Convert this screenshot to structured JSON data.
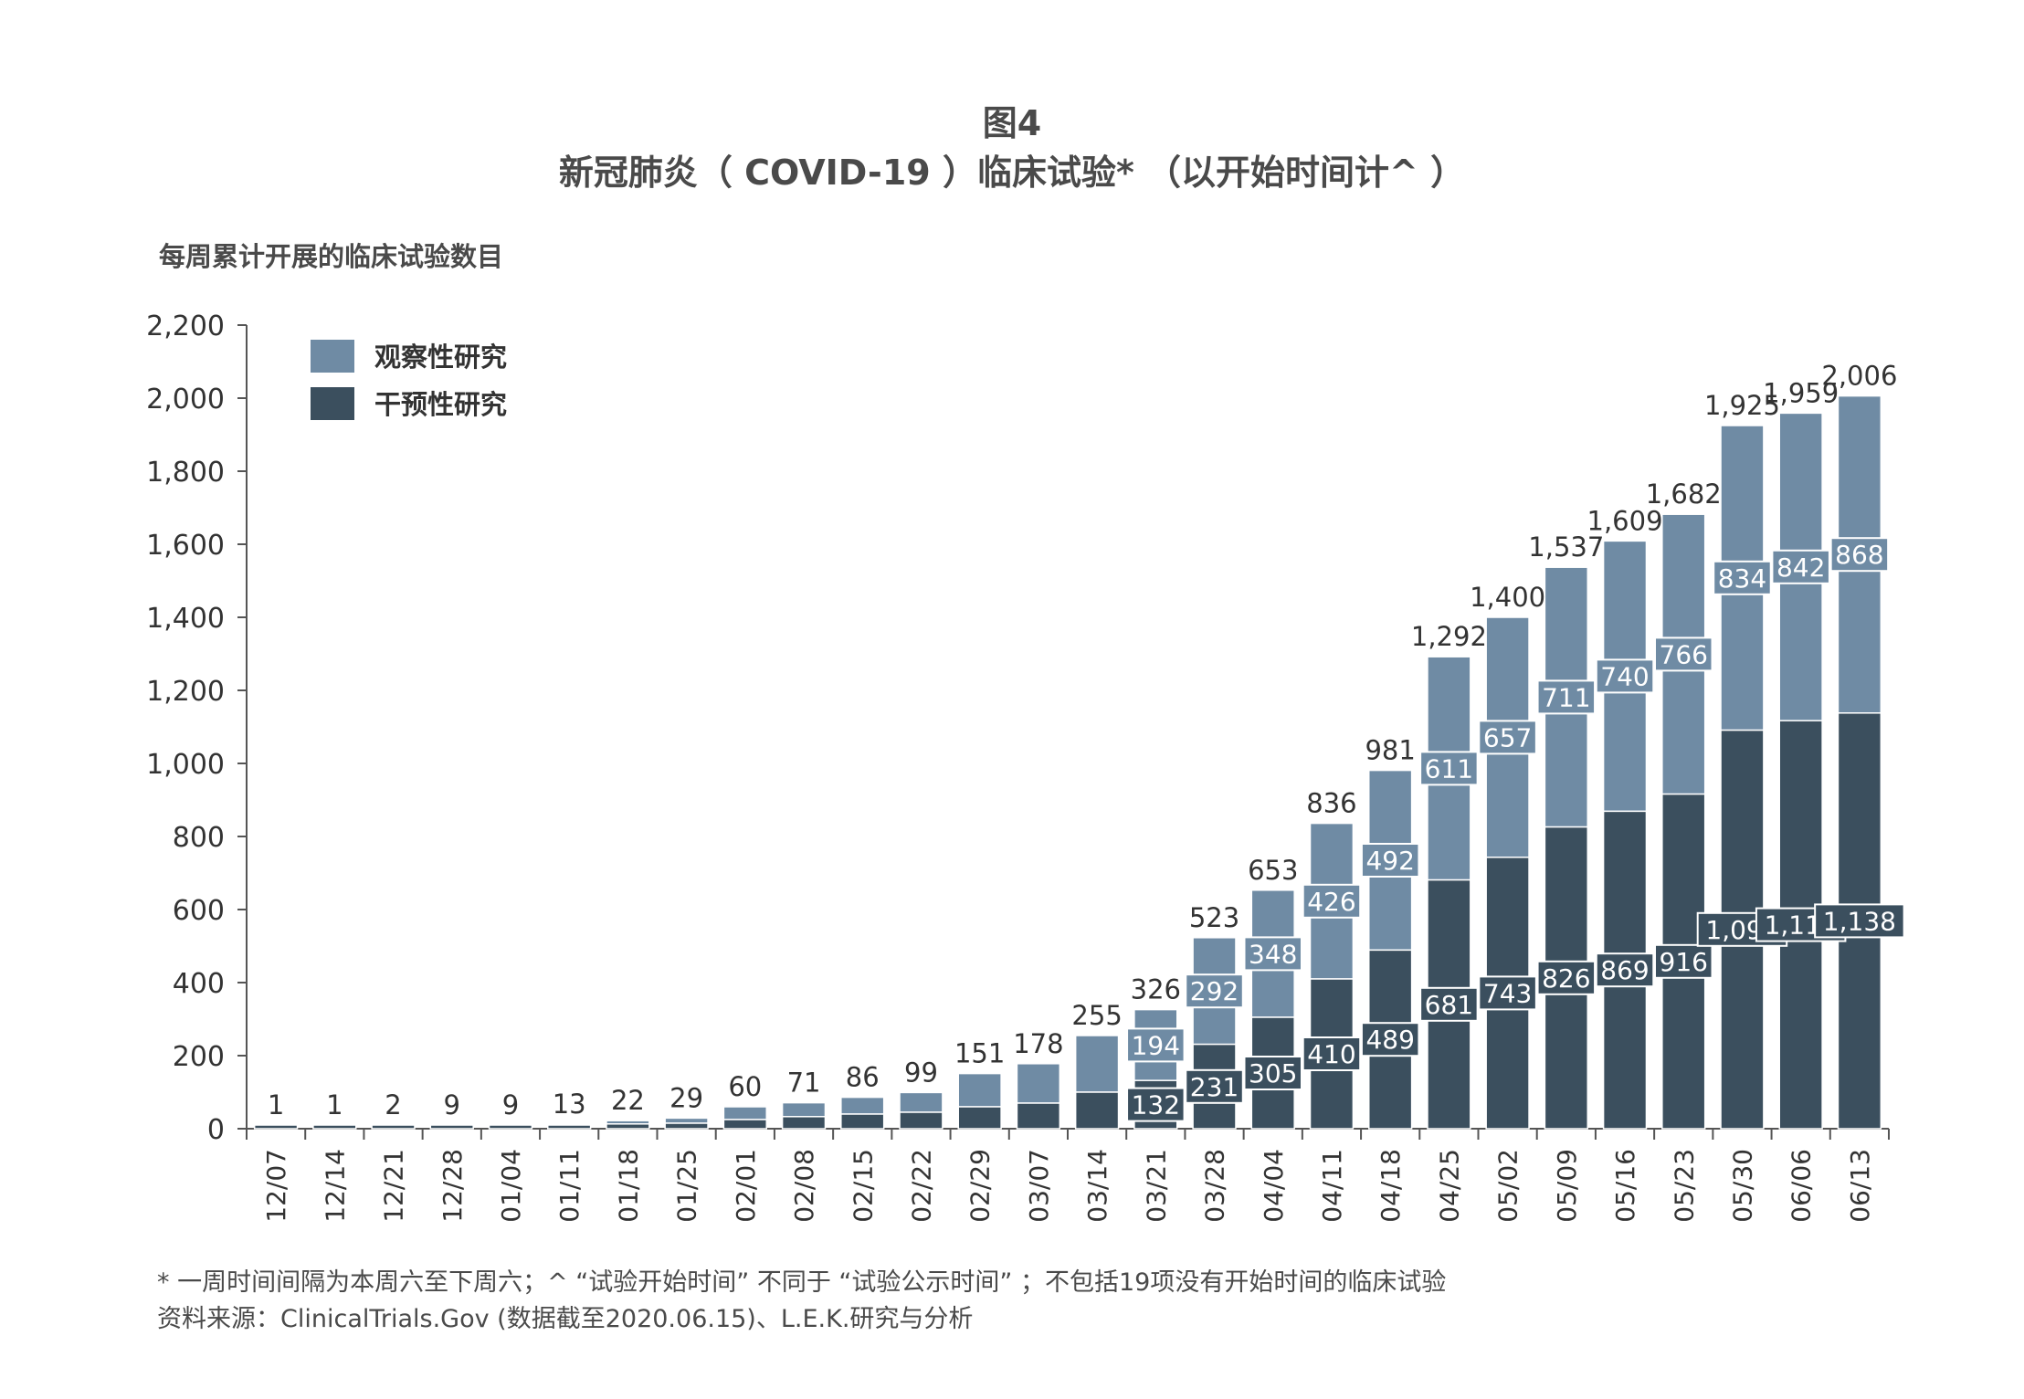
{
  "figure_number": "图4",
  "chart_data": {
    "type": "bar",
    "stacked": true,
    "title": "新冠肺炎（ COVID-19 ）临床试验* （以开始时间计^ ）",
    "ylabel": "每周累计开展的临床试验数目",
    "xlabel": "",
    "ylim": [
      0,
      2200
    ],
    "yticks": [
      "0",
      "200",
      "400",
      "600",
      "800",
      "1,000",
      "1,200",
      "1,400",
      "1,600",
      "1,800",
      "2,000",
      "2,200"
    ],
    "grid": false,
    "legend_position": "top-left",
    "categories": [
      "12/07",
      "12/14",
      "12/21",
      "12/28",
      "01/04",
      "01/11",
      "01/18",
      "01/25",
      "02/01",
      "02/08",
      "02/15",
      "02/22",
      "02/29",
      "03/07",
      "03/14",
      "03/21",
      "03/28",
      "04/04",
      "04/11",
      "04/18",
      "04/25",
      "05/02",
      "05/09",
      "05/16",
      "05/23",
      "05/30",
      "06/06",
      "06/13"
    ],
    "series": [
      {
        "name": "干预性研究",
        "color": "#3b4f5e",
        "values": [
          1,
          1,
          2,
          9,
          9,
          10,
          13,
          15,
          25,
          33,
          40,
          45,
          60,
          70,
          100,
          132,
          231,
          305,
          410,
          489,
          681,
          743,
          826,
          869,
          916,
          1091,
          1117,
          1138
        ],
        "labeled": [
          false,
          false,
          false,
          false,
          false,
          false,
          false,
          false,
          false,
          false,
          false,
          false,
          false,
          false,
          false,
          true,
          true,
          true,
          true,
          true,
          true,
          true,
          true,
          true,
          true,
          true,
          true,
          true
        ],
        "display": [
          "",
          "",
          "",
          "",
          "",
          "",
          "",
          "",
          "",
          "",
          "",
          "",
          "",
          "",
          "",
          "132",
          "231",
          "305",
          "410",
          "489",
          "681",
          "743",
          "826",
          "869",
          "916",
          "1,091",
          "1,117",
          "1,138"
        ]
      },
      {
        "name": "观察性研究",
        "color": "#6f8ba4",
        "values": [
          0,
          0,
          0,
          0,
          0,
          3,
          9,
          14,
          35,
          38,
          46,
          54,
          91,
          108,
          155,
          194,
          292,
          348,
          426,
          492,
          611,
          657,
          711,
          740,
          766,
          834,
          842,
          868
        ],
        "labeled": [
          false,
          false,
          false,
          false,
          false,
          false,
          false,
          false,
          false,
          false,
          false,
          false,
          false,
          false,
          false,
          true,
          true,
          true,
          true,
          true,
          true,
          true,
          true,
          true,
          true,
          true,
          true,
          true
        ],
        "display": [
          "",
          "",
          "",
          "",
          "",
          "",
          "",
          "",
          "",
          "",
          "",
          "",
          "",
          "",
          "",
          "194",
          "292",
          "348",
          "426",
          "492",
          "611",
          "657",
          "711",
          "740",
          "766",
          "834",
          "842",
          "868"
        ]
      }
    ],
    "totals": [
      1,
      1,
      2,
      9,
      9,
      13,
      22,
      29,
      60,
      71,
      86,
      99,
      151,
      178,
      255,
      326,
      523,
      653,
      836,
      981,
      1292,
      1400,
      1537,
      1609,
      1682,
      1925,
      1959,
      2006
    ],
    "totals_display": [
      "1",
      "1",
      "2",
      "9",
      "9",
      "13",
      "22",
      "29",
      "60",
      "71",
      "86",
      "99",
      "151",
      "178",
      "255",
      "326",
      "523",
      "653",
      "836",
      "981",
      "1,292",
      "1,400",
      "1,537",
      "1,609",
      "1,682",
      "1,925",
      "1,959",
      "2,006"
    ]
  },
  "footnotes": {
    "line1": "* 一周时间间隔为本周六至下周六；^ “试验开始时间” 不同于 “试验公示时间” ；不包括19项没有开始时间的临床试验",
    "line2": "资料来源：ClinicalTrials.Gov (数据截至2020.06.15)、L.E.K.研究与分析"
  }
}
